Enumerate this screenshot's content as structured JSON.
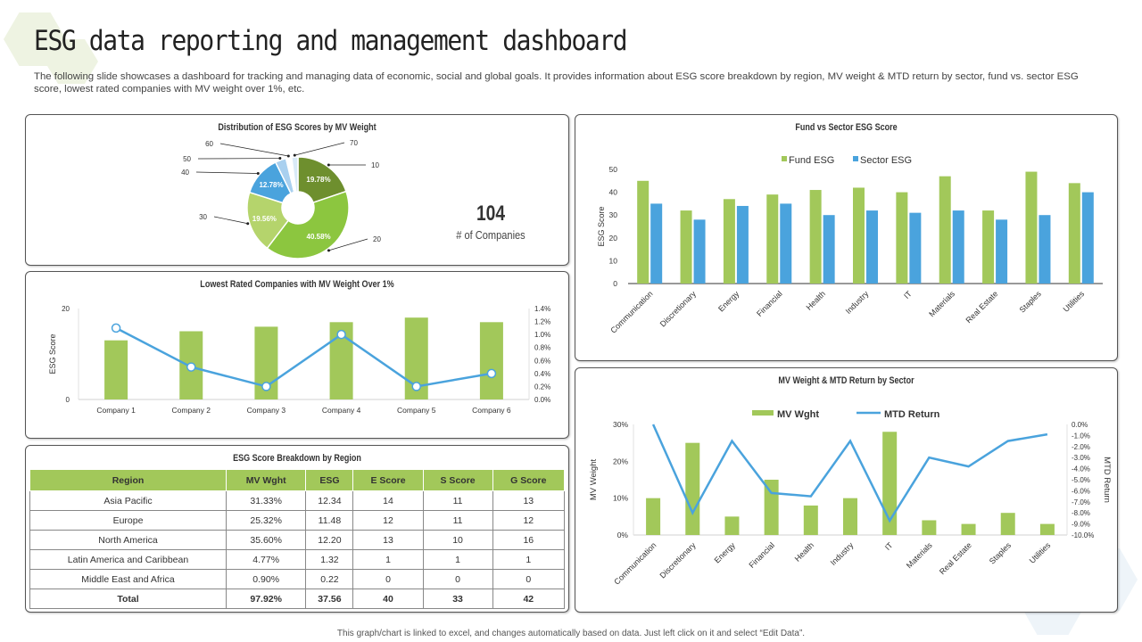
{
  "header": {
    "title": "ESG data reporting and management dashboard",
    "subtitle": "The following slide showcases  a dashboard for tracking and managing data of economic, social and global goals. It provides information about ESG score breakdown by region, MV  weight & MTD return by sector, fund vs. sector ESG score, lowest rated companies with MV weight over 1%, etc."
  },
  "kpi": {
    "value": "104",
    "label": "# of Companies"
  },
  "region_table": {
    "title": "ESG Score Breakdown by Region",
    "headers": [
      "Region",
      "MV Wght",
      "ESG",
      "E Score",
      "S Score",
      "G Score"
    ],
    "rows": [
      [
        "Asia Pacific",
        "31.33%",
        "12.34",
        "14",
        "11",
        "13"
      ],
      [
        "Europe",
        "25.32%",
        "11.48",
        "12",
        "11",
        "12"
      ],
      [
        "North America",
        "35.60%",
        "12.20",
        "13",
        "10",
        "16"
      ],
      [
        "Latin America and Caribbean",
        "4.77%",
        "1.32",
        "1",
        "1",
        "1"
      ],
      [
        "Middle East and Africa",
        "0.90%",
        "0.22",
        "0",
        "0",
        "0"
      ]
    ],
    "total": [
      "Total",
      "97.92%",
      "37.56",
      "40",
      "33",
      "42"
    ]
  },
  "footer": "This graph/chart is linked to excel, and changes automatically based on data. Just left click on it and select “Edit Data”.",
  "colors": {
    "green": "#a2c85a",
    "blue": "#4aa3dd",
    "dark_green": "#6e8f2e",
    "light_green": "#b5d46c",
    "pale_blue": "#a9d0ef"
  },
  "chart_data": [
    {
      "id": "donut",
      "type": "pie",
      "title": "Distribution of ESG Scores by MV Weight",
      "slices": [
        {
          "label": "10",
          "value": 19.78,
          "text": "19.78%",
          "color": "#6e8f2e"
        },
        {
          "label": "20",
          "value": 40.58,
          "text": "40.58%",
          "color": "#8cc63f"
        },
        {
          "label": "30",
          "value": 19.56,
          "text": "19.56%",
          "color": "#b5d46c"
        },
        {
          "label": "40",
          "value": 12.78,
          "text": "12.78%",
          "color": "#4aa3dd"
        },
        {
          "label": "50",
          "value": 3.5,
          "text": "",
          "color": "#a9d0ef"
        },
        {
          "label": "60",
          "value": 1.8,
          "text": "",
          "color": "#ffffff"
        },
        {
          "label": "70",
          "value": 2.0,
          "text": "",
          "color": "#d9eaf7"
        }
      ]
    },
    {
      "id": "lowest",
      "type": "bar",
      "title": "Lowest Rated Companies with MV Weight Over 1%",
      "categories": [
        "Company 1",
        "Company 2",
        "Company 3",
        "Company 4",
        "Company 5",
        "Company 6"
      ],
      "series": [
        {
          "name": "ESG Score",
          "type": "bar",
          "axis": "left",
          "values": [
            13,
            15,
            16,
            17,
            18,
            17
          ]
        },
        {
          "name": "MV Weight",
          "type": "line",
          "axis": "right",
          "values": [
            1.1,
            0.5,
            0.2,
            1.0,
            0.2,
            0.4
          ]
        }
      ],
      "ylabel": "ESG Score",
      "ylim": [
        0,
        20
      ],
      "y_ticks": [
        "0",
        "20"
      ],
      "y2lim": [
        0,
        1.4
      ],
      "y2_ticks": [
        "0.0%",
        "0.2%",
        "0.4%",
        "0.6%",
        "0.8%",
        "1.0%",
        "1.2%",
        "1.4%"
      ]
    },
    {
      "id": "fund_sector",
      "type": "bar",
      "title": "Fund vs Sector ESG Score",
      "categories": [
        "Communication",
        "Discretionary",
        "Energy",
        "Financial",
        "Health",
        "Industry",
        "IT",
        "Materials",
        "Real Estate",
        "Staples",
        "Utilities"
      ],
      "series": [
        {
          "name": "Fund ESG",
          "values": [
            45,
            32,
            37,
            39,
            41,
            42,
            40,
            47,
            32,
            49,
            44
          ]
        },
        {
          "name": "Sector ESG",
          "values": [
            35,
            28,
            34,
            35,
            30,
            32,
            31,
            32,
            28,
            30,
            40
          ]
        }
      ],
      "ylabel": "ESG Score",
      "ylim": [
        0,
        50
      ],
      "y_ticks": [
        "0",
        "10",
        "20",
        "30",
        "40",
        "50"
      ]
    },
    {
      "id": "mv_mtd",
      "type": "bar",
      "title": "MV Weight & MTD Return by Sector",
      "categories": [
        "Communication",
        "Discretionary",
        "Energy",
        "Financial",
        "Health",
        "Industry",
        "IT",
        "Materials",
        "Real Estate",
        "Staples",
        "Utilities"
      ],
      "series": [
        {
          "name": "MV Wght",
          "type": "bar",
          "axis": "left",
          "values": [
            10,
            25,
            5,
            15,
            8,
            10,
            28,
            4,
            3,
            6,
            3
          ]
        },
        {
          "name": "MTD Return",
          "type": "line",
          "axis": "right",
          "values": [
            0.0,
            -8.0,
            -1.5,
            -6.2,
            -6.5,
            -1.5,
            -8.7,
            -3.0,
            -3.8,
            -1.5,
            -0.9
          ]
        }
      ],
      "ylabel": "MV Weight",
      "y2label": "MTD Return",
      "ylim": [
        0,
        30
      ],
      "y_ticks": [
        "0%",
        "10%",
        "20%",
        "30%"
      ],
      "y2lim": [
        -10,
        0
      ],
      "y2_ticks": [
        "0.0%",
        "-1.0%",
        "-2.0%",
        "-3.0%",
        "-4.0%",
        "-5.0%",
        "-6.0%",
        "-7.0%",
        "-8.0%",
        "-9.0%",
        "-10.0%"
      ]
    }
  ]
}
